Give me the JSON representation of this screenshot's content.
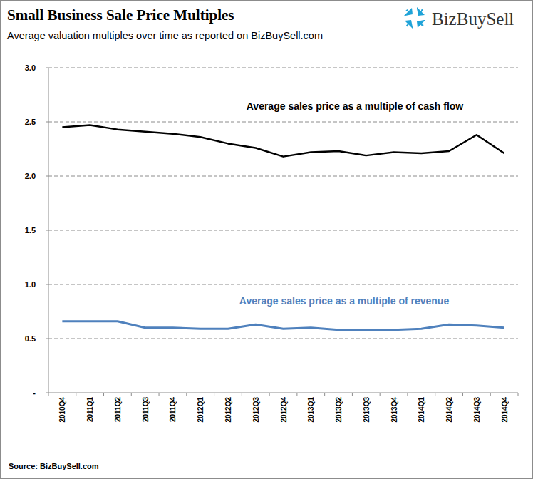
{
  "chart_data": {
    "type": "line",
    "title": "Small Business Sale Price Multiples",
    "subtitle": "Average valuation multiples over time as reported on BizBuySell.com",
    "logo": "BizBuySell",
    "source": "Source: BizBuySell.com",
    "categories": [
      "2010Q4",
      "2011Q1",
      "2011Q2",
      "2011Q3",
      "2011Q4",
      "2012Q1",
      "2012Q2",
      "2012Q3",
      "2012Q4",
      "2013Q1",
      "2013Q2",
      "2013Q3",
      "2013Q4",
      "2014Q1",
      "2014Q2",
      "2014Q3",
      "2014Q4"
    ],
    "series": [
      {
        "name": "Average sales price as a multiple of cash flow",
        "color": "#000000",
        "values": [
          2.45,
          2.47,
          2.43,
          2.41,
          2.39,
          2.36,
          2.3,
          2.26,
          2.18,
          2.22,
          2.23,
          2.19,
          2.22,
          2.21,
          2.23,
          2.38,
          2.21
        ]
      },
      {
        "name": "Average sales price as a multiple of revenue",
        "color": "#4f81bd",
        "values": [
          0.66,
          0.66,
          0.66,
          0.6,
          0.6,
          0.59,
          0.59,
          0.63,
          0.59,
          0.6,
          0.58,
          0.58,
          0.58,
          0.59,
          0.63,
          0.62,
          0.6
        ]
      }
    ],
    "ylim": [
      0,
      3
    ],
    "yticks": [
      {
        "value": 0,
        "label": "-"
      },
      0.5,
      {
        "value": 1,
        "label": "1.0"
      },
      1.5,
      {
        "value": 2,
        "label": "2.0"
      },
      2.5,
      {
        "value": 3,
        "label": "3.0"
      }
    ],
    "grid": true
  }
}
